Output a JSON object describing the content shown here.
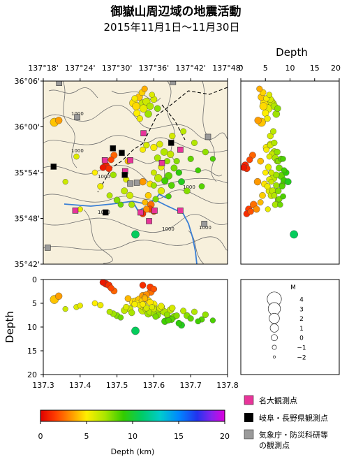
{
  "title": "御嶽山周辺域の地震活動",
  "subtitle": "2015年11月1日～11月30日",
  "colors": {
    "map_bg": "#f7f0dc",
    "contour": "#777777",
    "river": "#3a7fd5",
    "border": "#000000"
  },
  "chart_data": {
    "type": "scatter",
    "map": {
      "lon_ticks": [
        "137°18'",
        "137°24'",
        "137°30'",
        "137°36'",
        "137°42'",
        "137°48'"
      ],
      "lon_values": [
        137.3,
        137.4,
        137.5,
        137.6,
        137.7,
        137.8
      ],
      "lat_ticks": [
        "36°06'",
        "36°00'",
        "35°54'",
        "35°48'",
        "35°42'"
      ],
      "lat_values": [
        36.1,
        36.0,
        35.9,
        35.8,
        35.7
      ],
      "contour_labels": [
        "1000",
        "1000",
        "1000",
        "1000",
        "1000",
        "1000",
        "1000",
        "1000"
      ]
    },
    "depth_right": {
      "title": "Depth",
      "ticks": [
        "0",
        "5",
        "10",
        "15",
        "20"
      ],
      "range": [
        0,
        20
      ]
    },
    "depth_bottom": {
      "title": "Depth",
      "ticks": [
        "0",
        "5",
        "10",
        "15",
        "20"
      ],
      "range": [
        0,
        20
      ],
      "x_ticks": [
        "137.3",
        "137.4",
        "137.5",
        "137.6",
        "137.7",
        "137.8"
      ]
    },
    "magnitude_legend": {
      "title": "M",
      "labels": [
        "4",
        "3",
        "2",
        "1",
        "0",
        "−1",
        "−2"
      ],
      "values": [
        4,
        3,
        2,
        1,
        0,
        -1,
        -2
      ]
    },
    "colorbar": {
      "ticks": [
        "0",
        "5",
        "10",
        "15",
        "20"
      ],
      "label": "Depth (km)",
      "range": [
        0,
        20
      ]
    },
    "station_legend": {
      "nagoya": "名大観測点",
      "gifu_nagano": "岐阜・長野県観測点",
      "jma_line1": "気象庁・防災科研等",
      "jma_line2": "の観測点"
    },
    "stations": [
      {
        "type": "nagoya",
        "lon": 137.387,
        "lat": 35.817
      },
      {
        "type": "nagoya",
        "lon": 137.467,
        "lat": 35.927
      },
      {
        "type": "nagoya",
        "lon": 137.536,
        "lat": 35.927
      },
      {
        "type": "nagoya",
        "lon": 137.522,
        "lat": 35.903
      },
      {
        "type": "nagoya",
        "lon": 137.564,
        "lat": 35.813
      },
      {
        "type": "nagoya",
        "lon": 137.587,
        "lat": 35.794
      },
      {
        "type": "nagoya",
        "lon": 137.602,
        "lat": 35.817
      },
      {
        "type": "nagoya",
        "lon": 137.672,
        "lat": 35.817
      },
      {
        "type": "nagoya",
        "lon": 137.672,
        "lat": 35.95
      },
      {
        "type": "nagoya",
        "lon": 137.622,
        "lat": 35.921
      },
      {
        "type": "nagoya",
        "lon": 137.572,
        "lat": 35.986
      },
      {
        "type": "gifu",
        "lon": 137.328,
        "lat": 35.913
      },
      {
        "type": "gifu",
        "lon": 137.469,
        "lat": 35.813
      },
      {
        "type": "gifu",
        "lon": 137.489,
        "lat": 35.953
      },
      {
        "type": "gifu",
        "lon": 137.513,
        "lat": 35.943
      },
      {
        "type": "gifu",
        "lon": 137.521,
        "lat": 35.895
      },
      {
        "type": "gifu",
        "lon": 137.647,
        "lat": 35.965
      },
      {
        "type": "jma",
        "lon": 137.343,
        "lat": 36.096
      },
      {
        "type": "jma",
        "lon": 137.392,
        "lat": 36.021
      },
      {
        "type": "jma",
        "lon": 137.554,
        "lat": 35.878
      },
      {
        "type": "jma",
        "lon": 137.536,
        "lat": 35.876
      },
      {
        "type": "jma",
        "lon": 137.652,
        "lat": 36.098
      },
      {
        "type": "jma",
        "lon": 137.747,
        "lat": 35.978
      },
      {
        "type": "jma",
        "lon": 137.737,
        "lat": 35.788
      },
      {
        "type": "jma",
        "lon": 137.312,
        "lat": 35.736
      }
    ],
    "events": [
      {
        "lon": 137.33,
        "lat": 36.01,
        "depth": 4.2,
        "mag": 1.3
      },
      {
        "lon": 137.342,
        "lat": 36.014,
        "depth": 3.5,
        "mag": 0.5
      },
      {
        "lon": 137.47,
        "lat": 35.916,
        "depth": 0.9,
        "mag": 0.6
      },
      {
        "lon": 137.462,
        "lat": 35.911,
        "depth": 0.6,
        "mag": 0.2
      },
      {
        "lon": 137.478,
        "lat": 35.909,
        "depth": 1.2,
        "mag": 0.4
      },
      {
        "lon": 137.484,
        "lat": 35.928,
        "depth": 1.8,
        "mag": 0.1
      },
      {
        "lon": 137.492,
        "lat": 35.938,
        "depth": 2.4,
        "mag": 0.3
      },
      {
        "lon": 137.53,
        "lat": 35.925,
        "depth": 4.0,
        "mag": 0.2
      },
      {
        "lon": 137.49,
        "lat": 35.895,
        "depth": 7.2,
        "mag": 0.1
      },
      {
        "lon": 137.52,
        "lat": 35.86,
        "depth": 6.5,
        "mag": 0.3
      },
      {
        "lon": 137.525,
        "lat": 35.885,
        "depth": 5.8,
        "mag": 0.0
      },
      {
        "lon": 137.55,
        "lat": 35.765,
        "depth": 10.8,
        "mag": 1.0
      },
      {
        "lon": 137.44,
        "lat": 35.9,
        "depth": 5.0,
        "mag": -0.2
      },
      {
        "lon": 137.4,
        "lat": 35.82,
        "depth": 5.5,
        "mag": -0.3
      },
      {
        "lon": 137.545,
        "lat": 36.052,
        "depth": 4.8,
        "mag": 1.2
      },
      {
        "lon": 137.56,
        "lat": 36.065,
        "depth": 4.2,
        "mag": 0.6
      },
      {
        "lon": 137.572,
        "lat": 36.04,
        "depth": 5.6,
        "mag": 1.0
      },
      {
        "lon": 137.58,
        "lat": 36.055,
        "depth": 6.2,
        "mag": 0.8
      },
      {
        "lon": 137.554,
        "lat": 36.03,
        "depth": 5.0,
        "mag": 0.4
      },
      {
        "lon": 137.568,
        "lat": 36.075,
        "depth": 4.5,
        "mag": 0.2
      },
      {
        "lon": 137.59,
        "lat": 36.045,
        "depth": 6.8,
        "mag": 0.5
      },
      {
        "lon": 137.548,
        "lat": 36.062,
        "depth": 5.2,
        "mag": 0.0
      },
      {
        "lon": 137.6,
        "lat": 36.06,
        "depth": 6.0,
        "mag": 0.3
      },
      {
        "lon": 137.562,
        "lat": 36.018,
        "depth": 5.4,
        "mag": 0.1
      },
      {
        "lon": 137.585,
        "lat": 36.028,
        "depth": 7.2,
        "mag": 0.6
      },
      {
        "lon": 137.575,
        "lat": 36.083,
        "depth": 3.8,
        "mag": 0.0
      },
      {
        "lon": 137.61,
        "lat": 36.04,
        "depth": 7.5,
        "mag": 0.2
      },
      {
        "lon": 137.552,
        "lat": 36.045,
        "depth": 4.6,
        "mag": 0.9
      },
      {
        "lon": 137.595,
        "lat": 36.07,
        "depth": 5.8,
        "mag": -0.2
      },
      {
        "lon": 137.57,
        "lat": 36.05,
        "depth": 6.4,
        "mag": 1.4
      },
      {
        "lon": 137.6,
        "lat": 35.955,
        "depth": 5.2,
        "mag": 0.4
      },
      {
        "lon": 137.616,
        "lat": 35.962,
        "depth": 6.0,
        "mag": 0.2
      },
      {
        "lon": 137.628,
        "lat": 35.945,
        "depth": 6.8,
        "mag": 0.6
      },
      {
        "lon": 137.61,
        "lat": 35.932,
        "depth": 7.0,
        "mag": 0.3
      },
      {
        "lon": 137.636,
        "lat": 35.925,
        "depth": 7.4,
        "mag": 0.0
      },
      {
        "lon": 137.645,
        "lat": 35.94,
        "depth": 6.4,
        "mag": 0.5
      },
      {
        "lon": 137.62,
        "lat": 35.912,
        "depth": 5.6,
        "mag": 0.1
      },
      {
        "lon": 137.655,
        "lat": 35.91,
        "depth": 7.8,
        "mag": 0.3
      },
      {
        "lon": 137.6,
        "lat": 35.9,
        "depth": 6.2,
        "mag": -0.1
      },
      {
        "lon": 137.64,
        "lat": 35.893,
        "depth": 8.2,
        "mag": 0.7
      },
      {
        "lon": 137.662,
        "lat": 35.925,
        "depth": 7.6,
        "mag": 0.0
      },
      {
        "lon": 137.63,
        "lat": 35.882,
        "depth": 8.8,
        "mag": 0.4
      },
      {
        "lon": 137.668,
        "lat": 35.9,
        "depth": 9.2,
        "mag": 0.1
      },
      {
        "lon": 137.612,
        "lat": 35.888,
        "depth": 6.6,
        "mag": 0.9
      },
      {
        "lon": 137.648,
        "lat": 35.872,
        "depth": 8.4,
        "mag": 0.2
      },
      {
        "lon": 137.6,
        "lat": 35.872,
        "depth": 7.2,
        "mag": 0.0
      },
      {
        "lon": 137.675,
        "lat": 35.88,
        "depth": 9.6,
        "mag": 0.3
      },
      {
        "lon": 137.62,
        "lat": 35.86,
        "depth": 5.8,
        "mag": 0.5
      },
      {
        "lon": 137.585,
        "lat": 35.85,
        "depth": 4.4,
        "mag": 0.2
      },
      {
        "lon": 137.605,
        "lat": 35.842,
        "depth": 7.8,
        "mag": 0.0
      },
      {
        "lon": 137.64,
        "lat": 35.848,
        "depth": 8.6,
        "mag": -0.2
      },
      {
        "lon": 137.592,
        "lat": 35.83,
        "depth": 2.6,
        "mag": 0.6
      },
      {
        "lon": 137.58,
        "lat": 35.82,
        "depth": 3.2,
        "mag": 0.3
      },
      {
        "lon": 137.57,
        "lat": 35.81,
        "depth": 1.2,
        "mag": 0.2
      },
      {
        "lon": 137.6,
        "lat": 35.815,
        "depth": 2.0,
        "mag": 0.1
      },
      {
        "lon": 137.59,
        "lat": 35.82,
        "depth": 1.6,
        "mag": 0.4
      },
      {
        "lon": 137.576,
        "lat": 35.835,
        "depth": 4.0,
        "mag": -0.1
      },
      {
        "lon": 137.7,
        "lat": 35.93,
        "depth": 8.2,
        "mag": 0.0
      },
      {
        "lon": 137.72,
        "lat": 35.905,
        "depth": 8.8,
        "mag": -0.2
      },
      {
        "lon": 137.74,
        "lat": 35.945,
        "depth": 7.4,
        "mag": 0.1
      },
      {
        "lon": 137.76,
        "lat": 35.93,
        "depth": 8.6,
        "mag": -0.3
      },
      {
        "lon": 137.71,
        "lat": 35.965,
        "depth": 6.8,
        "mag": 0.0
      },
      {
        "lon": 137.69,
        "lat": 35.86,
        "depth": 7.6,
        "mag": 0.2
      },
      {
        "lon": 137.73,
        "lat": 35.87,
        "depth": 8.4,
        "mag": -0.1
      },
      {
        "lon": 137.68,
        "lat": 35.99,
        "depth": 6.6,
        "mag": 0.0
      },
      {
        "lon": 137.65,
        "lat": 35.98,
        "depth": 6.0,
        "mag": 0.1
      },
      {
        "lon": 137.48,
        "lat": 35.85,
        "depth": 6.8,
        "mag": -0.1
      },
      {
        "lon": 137.5,
        "lat": 35.84,
        "depth": 7.6,
        "mag": 0.2
      },
      {
        "lon": 137.455,
        "lat": 35.87,
        "depth": 5.4,
        "mag": 0.0
      },
      {
        "lon": 137.51,
        "lat": 35.83,
        "depth": 8.0,
        "mag": -0.2
      },
      {
        "lon": 137.535,
        "lat": 35.85,
        "depth": 6.2,
        "mag": 0.4
      },
      {
        "lon": 137.54,
        "lat": 35.83,
        "depth": 7.0,
        "mag": 0.1
      },
      {
        "lon": 137.57,
        "lat": 35.95,
        "depth": 5.2,
        "mag": -0.1
      },
      {
        "lon": 137.58,
        "lat": 35.96,
        "depth": 6.0,
        "mag": 0.1
      },
      {
        "lon": 137.39,
        "lat": 35.935,
        "depth": 5.8,
        "mag": -0.2
      },
      {
        "lon": 137.36,
        "lat": 35.88,
        "depth": 6.2,
        "mag": -0.3
      },
      {
        "lon": 137.57,
        "lat": 35.88,
        "depth": 3.4,
        "mag": 0.5
      },
      {
        "lon": 137.59,
        "lat": 35.875,
        "depth": 4.8,
        "mag": 0.2
      }
    ]
  }
}
